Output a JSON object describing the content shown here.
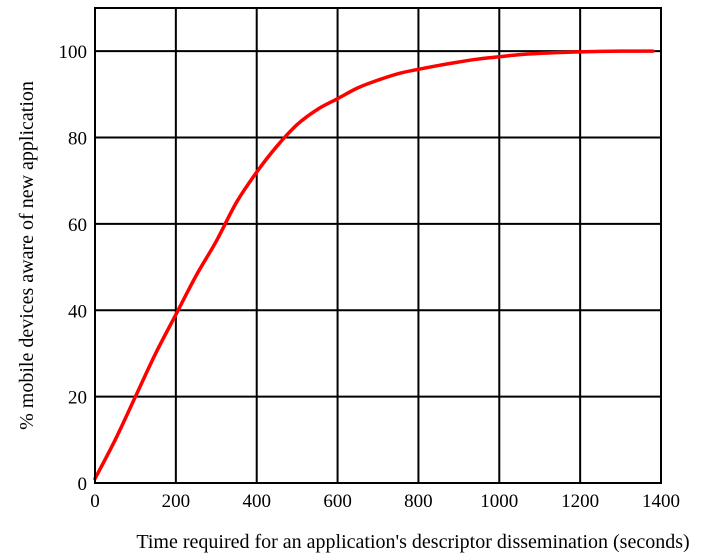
{
  "chart_data": {
    "type": "line",
    "title": "",
    "xlabel": "Time required for an application's descriptor dissemination (seconds)",
    "ylabel": "% mobile devices aware of new application",
    "xlim": [
      0,
      1400
    ],
    "ylim": [
      0,
      110
    ],
    "x_ticks": [
      0,
      200,
      400,
      600,
      800,
      1000,
      1200,
      1400
    ],
    "y_ticks": [
      0,
      20,
      40,
      60,
      80,
      100
    ],
    "grid": true,
    "legend": "none",
    "series": [
      {
        "color": "#ff0000",
        "x": [
          0,
          50,
          100,
          150,
          200,
          250,
          300,
          350,
          400,
          450,
          500,
          550,
          600,
          650,
          700,
          750,
          800,
          850,
          900,
          950,
          1000,
          1050,
          1100,
          1150,
          1200,
          1250,
          1300,
          1350,
          1380
        ],
        "y": [
          1,
          10,
          20,
          30,
          39,
          48,
          56,
          65,
          72,
          78,
          83,
          86.5,
          89,
          91.5,
          93.3,
          94.8,
          95.8,
          96.7,
          97.5,
          98.2,
          98.7,
          99.2,
          99.5,
          99.7,
          99.85,
          99.95,
          100,
          100,
          100
        ]
      }
    ]
  }
}
